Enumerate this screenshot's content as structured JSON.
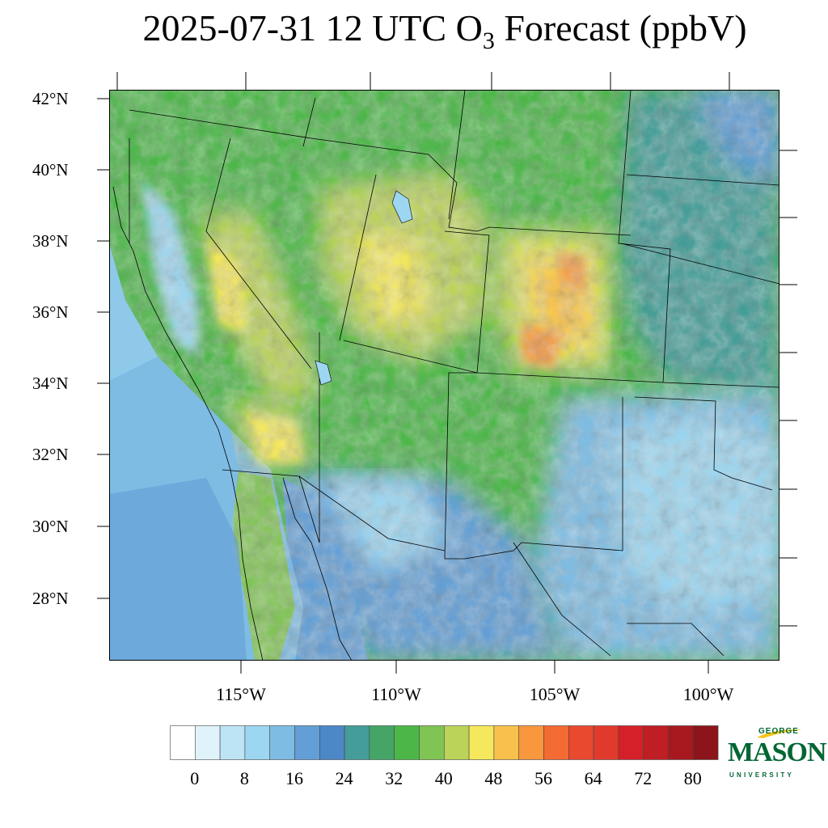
{
  "title": {
    "prefix": "2025-07-31 12 UTC O",
    "subscript": "3",
    "suffix": " Forecast (ppbV)"
  },
  "map": {
    "lat_labels": [
      "42°N",
      "40°N",
      "38°N",
      "36°N",
      "34°N",
      "32°N",
      "30°N",
      "28°N"
    ],
    "lon_labels": [
      "115°W",
      "110°W",
      "105°W",
      "100°W"
    ]
  },
  "colorbar": {
    "labels": [
      "0",
      "8",
      "16",
      "24",
      "32",
      "40",
      "48",
      "56",
      "64",
      "72",
      "80"
    ],
    "colors": [
      "#ffffff",
      "#e0f3fb",
      "#bde4f5",
      "#9dd6f0",
      "#7ebce3",
      "#639fd6",
      "#4c87c7",
      "#449d98",
      "#44a567",
      "#4cb748",
      "#80c454",
      "#bcd35a",
      "#f6e85c",
      "#f9c14c",
      "#f8973e",
      "#f46a33",
      "#e9492e",
      "#e13a2c",
      "#d62029",
      "#bf1e24",
      "#a7191f",
      "#8c141b"
    ]
  },
  "logo": {
    "line1": "GEORGE",
    "line2": "MASON",
    "line3": "UNIVERSITY"
  }
}
